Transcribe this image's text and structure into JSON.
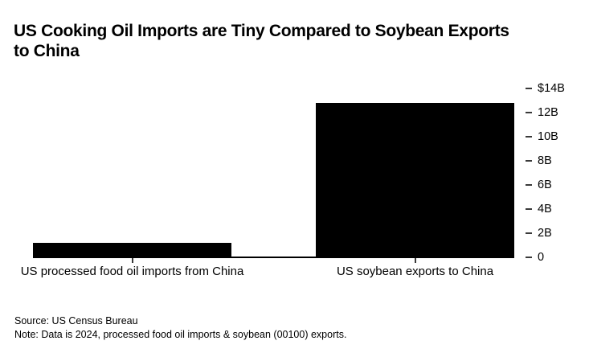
{
  "page": {
    "title_line1": "US Cooking Oil Imports are Tiny Compared to Soybean Exports",
    "title_line2": "to China",
    "source": "Source: US Census Bureau",
    "note": "Note: Data is 2024, processed food oil imports & soybean (00100) exports."
  },
  "chart_data": {
    "type": "bar",
    "title": "US Cooking Oil Imports are Tiny Compared to Soybean Exports to China",
    "categories": [
      "US processed food oil imports from China",
      "US soybean exports to China"
    ],
    "values": [
      1.2,
      12.8
    ],
    "unit": "USD billions",
    "xlabel": "",
    "ylabel": "",
    "ylim": [
      0,
      14
    ],
    "y_ticks": [
      {
        "value": 14,
        "label": "$14B"
      },
      {
        "value": 12,
        "label": "12B"
      },
      {
        "value": 10,
        "label": "10B"
      },
      {
        "value": 8,
        "label": "8B"
      },
      {
        "value": 6,
        "label": "6B"
      },
      {
        "value": 4,
        "label": "4B"
      },
      {
        "value": 2,
        "label": "2B"
      },
      {
        "value": 0,
        "label": "0"
      }
    ],
    "axis_side": "right",
    "grid": false,
    "legend": false
  },
  "colors": {
    "background": "#ffffff",
    "text": "#000000",
    "bar": "#000000",
    "axis_line": "#000000",
    "tick": "#3a3a3a"
  }
}
